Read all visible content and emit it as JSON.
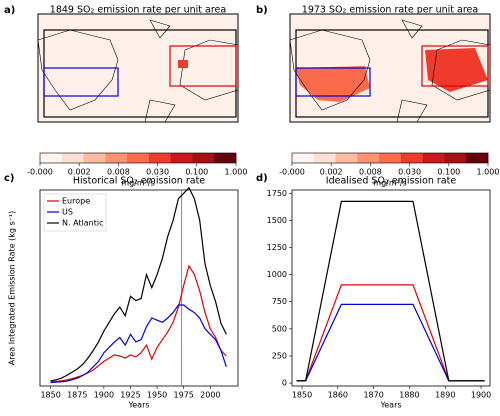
{
  "chart_data": [
    {
      "type": "map",
      "panel": "a)",
      "title": "1849 SO₂ emission rate per unit area",
      "colorbar": {
        "label": "mg/m²/s",
        "colors": [
          "#fff5f0",
          "#fee0d2",
          "#fcbba1",
          "#fc9272",
          "#fb6a4a",
          "#ef3b2c",
          "#cb181d",
          "#a50f15",
          "#67000d"
        ],
        "ticks": [
          {
            "value": 0,
            "label": "-0.000"
          },
          {
            "value": 0.002,
            "label": "0.002"
          },
          {
            "value": 0.008,
            "label": "0.008"
          },
          {
            "value": 0.03,
            "label": "0.030"
          },
          {
            "value": 0.1,
            "label": "0.100"
          },
          {
            "value": 1,
            "label": "1.000"
          }
        ]
      }
    },
    {
      "type": "map",
      "panel": "b)",
      "title": "1973 SO₂ emission rate per unit area",
      "colorbar": {
        "label": "mg/m²/s",
        "colors": [
          "#fff5f0",
          "#fee0d2",
          "#fcbba1",
          "#fc9272",
          "#fb6a4a",
          "#ef3b2c",
          "#cb181d",
          "#a50f15",
          "#67000d"
        ],
        "ticks": [
          {
            "value": 0,
            "label": "-0.000"
          },
          {
            "value": 0.002,
            "label": "0.002"
          },
          {
            "value": 0.008,
            "label": "0.008"
          },
          {
            "value": 0.03,
            "label": "0.030"
          },
          {
            "value": 0.1,
            "label": "0.100"
          },
          {
            "value": 1,
            "label": "1.000"
          }
        ]
      }
    },
    {
      "type": "line",
      "panel": "c)",
      "title": "Historical SO₂ emission rate",
      "x_label": "Years",
      "y_label": "Area Integrated Emission Rate (kg s⁻¹)",
      "xlim": [
        1840,
        2026
      ],
      "ylim": [
        -27,
        1780
      ],
      "xticks": [
        1850,
        1875,
        1900,
        1925,
        1950,
        1975,
        2000
      ],
      "vline": 1973,
      "legend": "upper-left",
      "x": [
        1850,
        1855,
        1860,
        1865,
        1870,
        1875,
        1880,
        1885,
        1890,
        1895,
        1900,
        1905,
        1910,
        1915,
        1920,
        1925,
        1930,
        1935,
        1940,
        1945,
        1950,
        1955,
        1960,
        1965,
        1970,
        1975,
        1980,
        1985,
        1990,
        1995,
        2000,
        2005,
        2010,
        2015
      ],
      "series": [
        {
          "name": "Europe",
          "color": "#e00000",
          "values": [
            10,
            15,
            20,
            30,
            40,
            55,
            70,
            95,
            120,
            160,
            200,
            230,
            260,
            250,
            230,
            260,
            240,
            280,
            350,
            220,
            330,
            400,
            470,
            560,
            700,
            900,
            1080,
            1000,
            850,
            650,
            500,
            420,
            300,
            250
          ]
        },
        {
          "name": "US",
          "color": "#0000dd",
          "values": [
            5,
            8,
            12,
            18,
            30,
            45,
            70,
            100,
            150,
            200,
            280,
            330,
            380,
            420,
            350,
            450,
            380,
            400,
            520,
            600,
            580,
            560,
            600,
            650,
            720,
            720,
            680,
            650,
            600,
            500,
            450,
            400,
            300,
            150
          ]
        },
        {
          "name": "N. Atlantic",
          "color": "#000000",
          "values": [
            20,
            30,
            45,
            70,
            100,
            130,
            170,
            230,
            300,
            380,
            480,
            560,
            640,
            700,
            620,
            800,
            760,
            780,
            1000,
            880,
            1000,
            1150,
            1350,
            1500,
            1700,
            1750,
            1800,
            1700,
            1500,
            1100,
            900,
            750,
            550,
            450
          ]
        }
      ]
    },
    {
      "type": "line",
      "panel": "d)",
      "title": "Idealised SO₂ emission rate",
      "x_label": "Years",
      "xlim": [
        1847.2,
        1902.5
      ],
      "ylim": [
        -27,
        1780
      ],
      "xticks": [
        1850,
        1860,
        1870,
        1880,
        1890,
        1900
      ],
      "yticks": [
        0,
        250,
        500,
        750,
        1000,
        1250,
        1500,
        1750
      ],
      "x": [
        1848.5,
        1851,
        1861,
        1881,
        1891,
        1901
      ],
      "series": [
        {
          "name": "Europe",
          "color": "#e00000",
          "values": [
            20,
            20,
            905,
            905,
            20,
            20
          ]
        },
        {
          "name": "US",
          "color": "#0000dd",
          "values": [
            20,
            20,
            725,
            725,
            20,
            20
          ]
        },
        {
          "name": "N. Atlantic",
          "color": "#000000",
          "values": [
            20,
            20,
            1675,
            1675,
            20,
            20
          ]
        }
      ]
    }
  ]
}
